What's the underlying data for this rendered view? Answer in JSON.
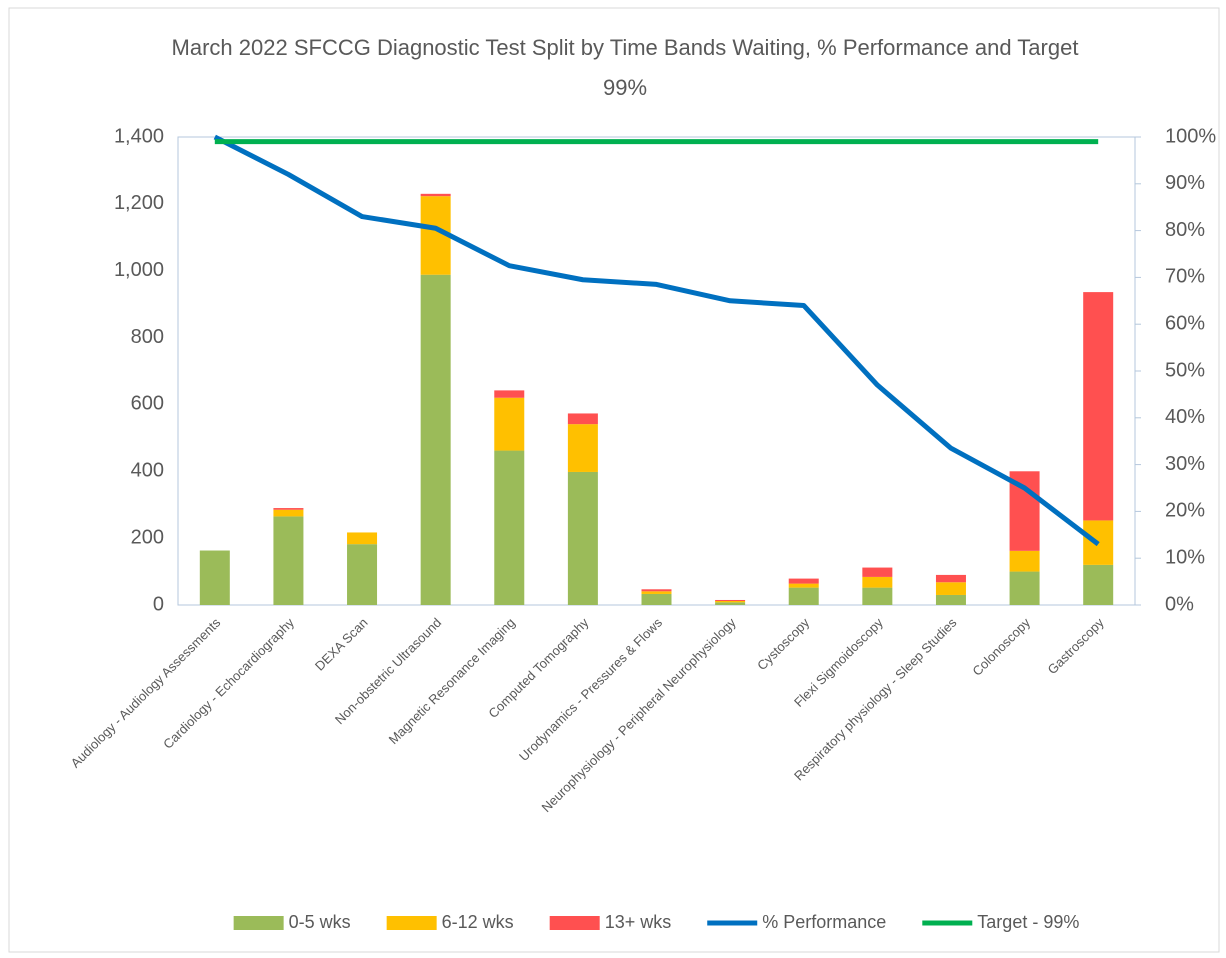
{
  "chart_data": {
    "type": "bar",
    "stacked": true,
    "title": "March 2022 SFCCG Diagnostic Test Split by Time Bands Waiting, % Performance and Target 99%",
    "categories": [
      "Audiology - Audiology Assessments",
      "Cardiology - Echocardiography",
      "DEXA Scan",
      "Non-obstetric Ultrasound",
      "Magnetic Resonance Imaging",
      "Computed Tomography",
      "Urodynamics - Pressures & Flows",
      "Neurophysiology - Peripheral Neurophysiology",
      "Cystoscopy",
      "Flexi Sigmoidoscopy",
      "Respiratory physiology - Sleep Studies",
      "Colonoscopy",
      "Gastroscopy"
    ],
    "series": [
      {
        "name": "0-5 wks",
        "type": "bar",
        "color": "#9bbb59",
        "values": [
          163,
          265,
          182,
          988,
          462,
          398,
          33,
          8,
          52,
          52,
          30,
          100,
          120
        ]
      },
      {
        "name": "6-12 wks",
        "type": "bar",
        "color": "#ffc000",
        "values": [
          0,
          20,
          35,
          235,
          158,
          143,
          8,
          4,
          12,
          32,
          38,
          62,
          133
        ]
      },
      {
        "name": "13+ wks",
        "type": "bar",
        "color": "#ff5050",
        "values": [
          0,
          5,
          0,
          7,
          22,
          32,
          6,
          3,
          15,
          28,
          22,
          238,
          683
        ]
      },
      {
        "name": "% Performance",
        "type": "line",
        "axis": "y2",
        "color": "#0070c0",
        "values": [
          100,
          92,
          83,
          80.5,
          72.5,
          69.5,
          68.5,
          65,
          64,
          47,
          33.5,
          25,
          13
        ]
      },
      {
        "name": "Target - 99%",
        "type": "line",
        "axis": "y2",
        "color": "#00b050",
        "values": [
          99,
          99,
          99,
          99,
          99,
          99,
          99,
          99,
          99,
          99,
          99,
          99,
          99
        ]
      }
    ],
    "ylim": [
      0,
      1400
    ],
    "yticks": [
      0,
      200,
      400,
      600,
      800,
      {
        "value": 1000,
        "label": "1,000"
      },
      {
        "value": 1200,
        "label": "1,200"
      },
      {
        "value": 1400,
        "label": "1,400"
      }
    ],
    "y2lim": [
      0,
      100
    ],
    "y2ticks": [
      {
        "value": 0,
        "label": "0%"
      },
      {
        "value": 10,
        "label": "10%"
      },
      {
        "value": 20,
        "label": "20%"
      },
      {
        "value": 30,
        "label": "30%"
      },
      {
        "value": 40,
        "label": "40%"
      },
      {
        "value": 50,
        "label": "50%"
      },
      {
        "value": 60,
        "label": "60%"
      },
      {
        "value": 70,
        "label": "70%"
      },
      {
        "value": 80,
        "label": "80%"
      },
      {
        "value": 90,
        "label": "90%"
      },
      {
        "value": 100,
        "label": "100%"
      }
    ],
    "legend": "bottom"
  }
}
